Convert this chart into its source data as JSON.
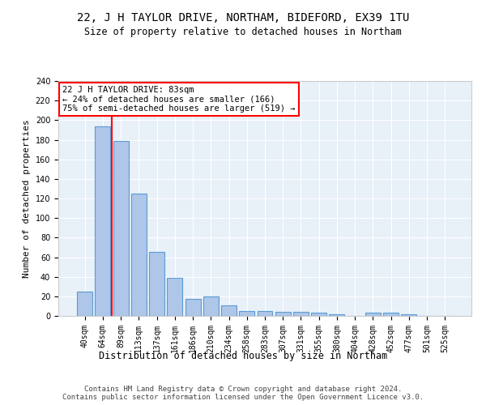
{
  "title": "22, J H TAYLOR DRIVE, NORTHAM, BIDEFORD, EX39 1TU",
  "subtitle": "Size of property relative to detached houses in Northam",
  "xlabel": "Distribution of detached houses by size in Northam",
  "ylabel": "Number of detached properties",
  "categories": [
    "40sqm",
    "64sqm",
    "89sqm",
    "113sqm",
    "137sqm",
    "161sqm",
    "186sqm",
    "210sqm",
    "234sqm",
    "258sqm",
    "283sqm",
    "307sqm",
    "331sqm",
    "355sqm",
    "380sqm",
    "404sqm",
    "428sqm",
    "452sqm",
    "477sqm",
    "501sqm",
    "525sqm"
  ],
  "values": [
    25,
    194,
    179,
    125,
    65,
    39,
    17,
    20,
    11,
    5,
    5,
    4,
    4,
    3,
    2,
    0,
    3,
    3,
    2,
    0,
    0
  ],
  "bar_color": "#aec6e8",
  "bar_edge_color": "#5a9bd5",
  "vline_x": 1.5,
  "vline_color": "red",
  "annotation_text": "22 J H TAYLOR DRIVE: 83sqm\n← 24% of detached houses are smaller (166)\n75% of semi-detached houses are larger (519) →",
  "annotation_box_color": "white",
  "annotation_box_edge_color": "red",
  "footer_line1": "Contains HM Land Registry data © Crown copyright and database right 2024.",
  "footer_line2": "Contains public sector information licensed under the Open Government Licence v3.0.",
  "background_color": "#e8f0f8",
  "ylim": [
    0,
    240
  ],
  "title_fontsize": 10,
  "subtitle_fontsize": 8.5,
  "ylabel_fontsize": 8,
  "xlabel_fontsize": 8.5,
  "tick_fontsize": 7,
  "annotation_fontsize": 7.5,
  "footer_fontsize": 6.5
}
